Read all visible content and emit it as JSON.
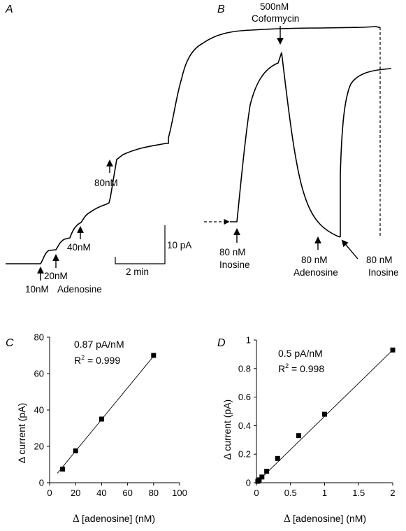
{
  "panels": {
    "a": {
      "letter": "A"
    },
    "b": {
      "letter": "B"
    },
    "c": {
      "letter": "C"
    },
    "d": {
      "letter": "D"
    }
  },
  "trace_a": {
    "annotations": [
      "10nM",
      "20nM",
      "40nM",
      "80nM"
    ],
    "compound_label": "Adenosine",
    "scalebar": {
      "current_label": "10 pA",
      "time_label": "2 min"
    }
  },
  "trace_b": {
    "annotations": {
      "coformycin_dose": "500nM",
      "coformycin_name": "Coformycin",
      "inosine1_dose": "80 nM",
      "inosine1_name": "Inosine",
      "adenosine_dose": "80 nM",
      "adenosine_name": "Adenosine",
      "inosine2_dose": "80 nM",
      "inosine2_name": "Inosine"
    }
  },
  "chart_data": [
    {
      "type": "scatter",
      "panel": "C",
      "xlabel_symbol": "Δ",
      "xlabel": "[adenosine] (nM)",
      "ylabel": "Δ current (pA)",
      "xlim": [
        0,
        100
      ],
      "ylim": [
        0,
        80
      ],
      "xticks": [
        "0",
        "20",
        "40",
        "60",
        "80",
        "100"
      ],
      "yticks": [
        "0",
        "20",
        "40",
        "60",
        "80"
      ],
      "x": [
        10,
        20,
        40,
        80
      ],
      "y": [
        7.5,
        17.5,
        35,
        70
      ],
      "fit": {
        "slope": 0.87,
        "intercept": 0
      },
      "annotation_slope": "0.87 pA/nM",
      "annotation_r2_prefix": "R",
      "annotation_r2_sup": "2",
      "annotation_r2_value": " = 0.999"
    },
    {
      "type": "scatter",
      "panel": "D",
      "xlabel_symbol": "Δ",
      "xlabel": "[adenosine] (nM)",
      "ylabel": "Δ current (pA)",
      "xlim": [
        0,
        2
      ],
      "ylim": [
        0,
        1
      ],
      "xticks": [
        "0",
        "0.5",
        "1",
        "1.5",
        "2"
      ],
      "yticks": [
        "0",
        "0.2",
        "0.4",
        "0.6",
        "0.8",
        "1"
      ],
      "x": [
        0.02,
        0.04,
        0.08,
        0.15,
        0.31,
        0.62,
        1.0,
        2.0
      ],
      "y": [
        0.01,
        0.02,
        0.04,
        0.08,
        0.17,
        0.33,
        0.48,
        0.93
      ],
      "fit": {
        "slope": 0.465,
        "intercept": 0
      },
      "annotation_slope": "0.5 pA/nM",
      "annotation_r2_prefix": "R",
      "annotation_r2_sup": "2",
      "annotation_r2_value": " = 0.998"
    }
  ]
}
